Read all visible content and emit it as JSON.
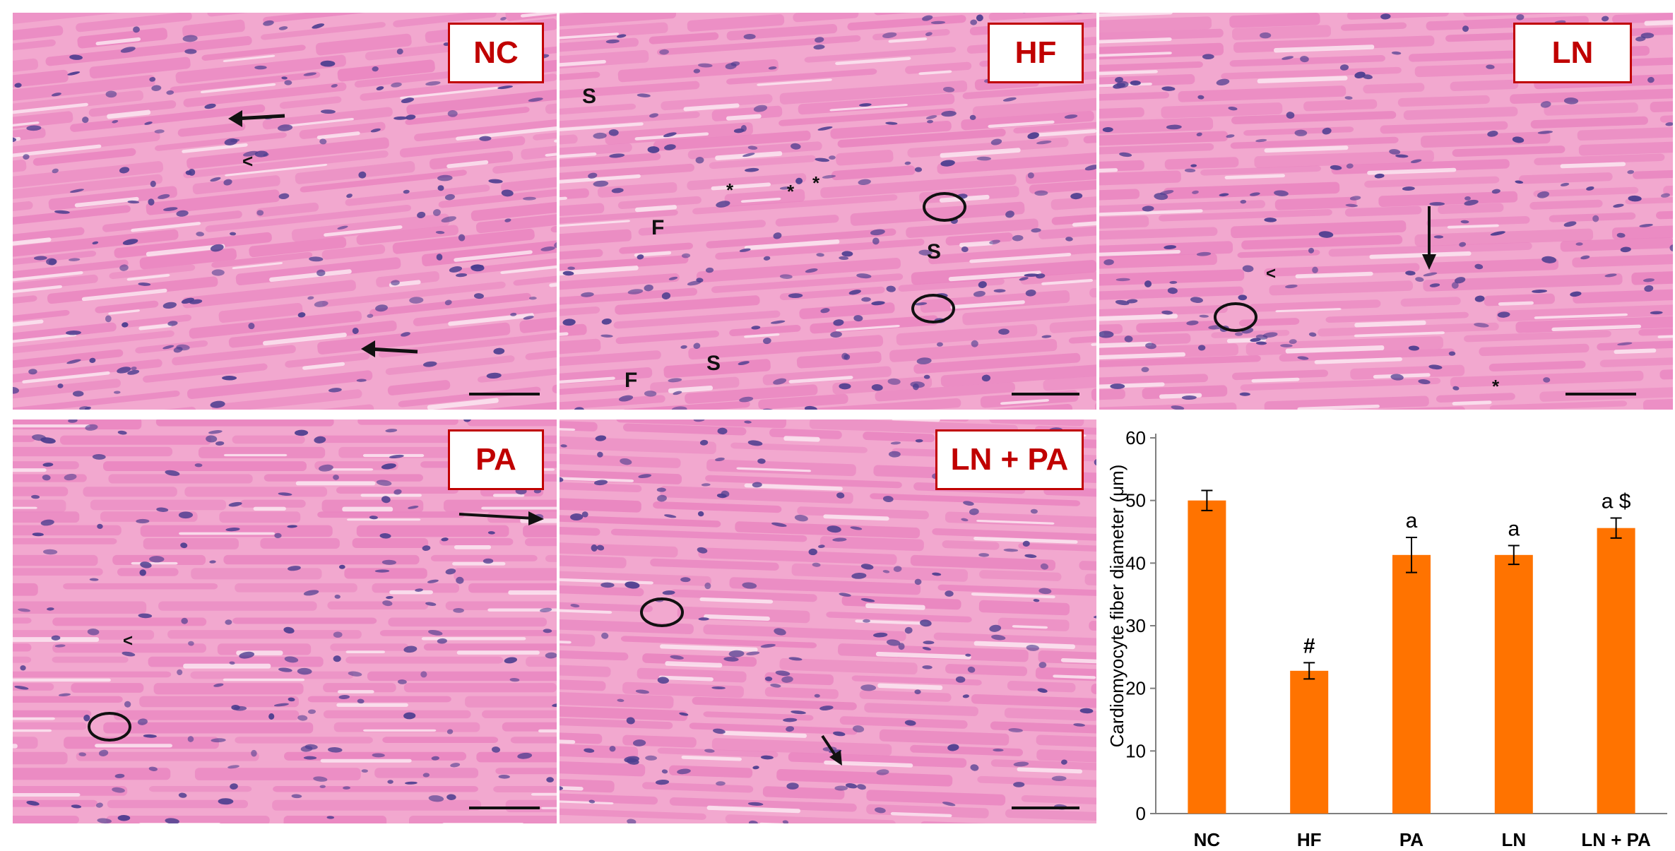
{
  "panels": [
    {
      "id": "nc",
      "label": "NC"
    },
    {
      "id": "hf",
      "label": "HF"
    },
    {
      "id": "ln",
      "label": "LN"
    },
    {
      "id": "pa",
      "label": "PA"
    },
    {
      "id": "lnpa",
      "label": "LN + PA"
    }
  ],
  "annotations": {
    "s": "S",
    "f": "F",
    "star": "*",
    "chevron": "<"
  },
  "colors": {
    "tissue_bg": "#f2a8cf",
    "fiber": "#e985c0",
    "gap": "#fbe6f1",
    "nucleus": "#4b3d8f",
    "label_red": "#c00000",
    "bar": "#ff7300"
  },
  "chart_data": {
    "type": "bar",
    "categories": [
      "NC",
      "HF",
      "PA",
      "LN",
      "LN + PA"
    ],
    "values": [
      50,
      22.8,
      41.3,
      41.3,
      45.6
    ],
    "errors": [
      1.6,
      1.3,
      2.8,
      1.5,
      1.6
    ],
    "significance": [
      "",
      "#",
      "a",
      "a",
      "a $"
    ],
    "ylabel": "Cardiomyocyte fiber diameter (μm)",
    "ylim": [
      0,
      60
    ],
    "yticks": [
      0,
      10,
      20,
      30,
      40,
      50,
      60
    ],
    "grid": false
  }
}
